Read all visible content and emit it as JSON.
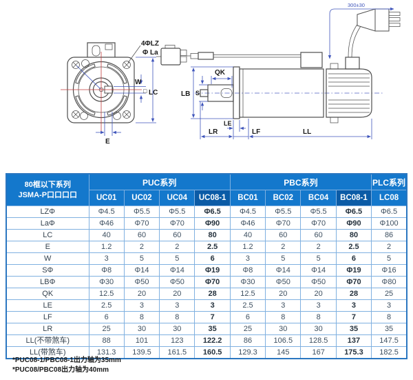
{
  "diagram": {
    "front_view": {
      "bolt_hole_label": "4ΦLZ",
      "bolt_circle_label": "Φ La",
      "keyway_width_label": "W",
      "square_symbol": "□",
      "frame_label": "LC",
      "keyway_offset_label": "E"
    },
    "side_view": {
      "key_length_label": "QK",
      "pilot_diameter_label": "LB",
      "shaft_diameter_label": "S",
      "pilot_height_label": "LE",
      "shaft_length_label": "LR",
      "flange_section_label": "LF",
      "body_length_label": "LL",
      "cable_length_label": "300±30"
    }
  },
  "table": {
    "corner": {
      "line1": "80框以下系列",
      "line2": "JSMA-P口口口口"
    },
    "groups": [
      {
        "label": "PUC系列",
        "span": 4
      },
      {
        "label": "PBC系列",
        "span": 4
      },
      {
        "label": "PLC系列",
        "span": 1
      }
    ],
    "columns": [
      {
        "id": "UC01",
        "highlight": false
      },
      {
        "id": "UC02",
        "highlight": false
      },
      {
        "id": "UC04",
        "highlight": false
      },
      {
        "id": "UC08-1",
        "highlight": true
      },
      {
        "id": "BC01",
        "highlight": false
      },
      {
        "id": "BC02",
        "highlight": false
      },
      {
        "id": "BC04",
        "highlight": false
      },
      {
        "id": "BC08-1",
        "highlight": true
      },
      {
        "id": "LC08",
        "highlight": false
      }
    ],
    "rows": [
      {
        "label": "LZΦ",
        "values": [
          "Φ4.5",
          "Φ5.5",
          "Φ5.5",
          "Φ6.5",
          "Φ4.5",
          "Φ5.5",
          "Φ5.5",
          "Φ6.5",
          "Φ6.5"
        ]
      },
      {
        "label": "LaΦ",
        "values": [
          "Φ46",
          "Φ70",
          "Φ70",
          "Φ90",
          "Φ46",
          "Φ70",
          "Φ70",
          "Φ90",
          "Φ100"
        ]
      },
      {
        "label": "LC",
        "values": [
          "40",
          "60",
          "60",
          "80",
          "40",
          "60",
          "60",
          "80",
          "86"
        ]
      },
      {
        "label": "E",
        "values": [
          "1.2",
          "2",
          "2",
          "2.5",
          "1.2",
          "2",
          "2",
          "2.5",
          "2"
        ]
      },
      {
        "label": "W",
        "values": [
          "3",
          "5",
          "5",
          "6",
          "3",
          "5",
          "5",
          "6",
          "5"
        ]
      },
      {
        "label": "SΦ",
        "values": [
          "Φ8",
          "Φ14",
          "Φ14",
          "Φ19",
          "Φ8",
          "Φ14",
          "Φ14",
          "Φ19",
          "Φ16"
        ]
      },
      {
        "label": "LBΦ",
        "values": [
          "Φ30",
          "Φ50",
          "Φ50",
          "Φ70",
          "Φ30",
          "Φ50",
          "Φ50",
          "Φ70",
          "Φ80"
        ]
      },
      {
        "label": "QK",
        "values": [
          "12.5",
          "20",
          "20",
          "28",
          "12.5",
          "20",
          "20",
          "28",
          "25"
        ]
      },
      {
        "label": "LE",
        "values": [
          "2.5",
          "3",
          "3",
          "3",
          "2.5",
          "3",
          "3",
          "3",
          "3"
        ]
      },
      {
        "label": "LF",
        "values": [
          "6",
          "8",
          "8",
          "7",
          "6",
          "8",
          "8",
          "7",
          "8"
        ]
      },
      {
        "label": "LR",
        "values": [
          "25",
          "30",
          "30",
          "35",
          "25",
          "30",
          "30",
          "35",
          "35"
        ]
      },
      {
        "label": "LL(不带煞车)",
        "values": [
          "88",
          "101",
          "123",
          "122.2",
          "86",
          "106.5",
          "128.5",
          "137",
          "147.5"
        ]
      },
      {
        "label": "LL(带煞车)",
        "values": [
          "131.3",
          "139.5",
          "161.5",
          "160.5",
          "129.3",
          "145",
          "167",
          "175.3",
          "182.5"
        ]
      }
    ]
  },
  "footnotes": [
    "*PUC08-1/PBC08-1出力轴为35mm",
    "*PUC08/PBC08出力轴为40mm"
  ],
  "colors": {
    "header_blue": "#1478cc",
    "header_blue_dark": "#0b5ba6",
    "grid_border": "#7fb0e0",
    "outer_border": "#2a76c0",
    "dimension_blue": "#3f55bb",
    "centerline_red": "#c23c3c",
    "drawing_gray": "#4d4d4d"
  }
}
